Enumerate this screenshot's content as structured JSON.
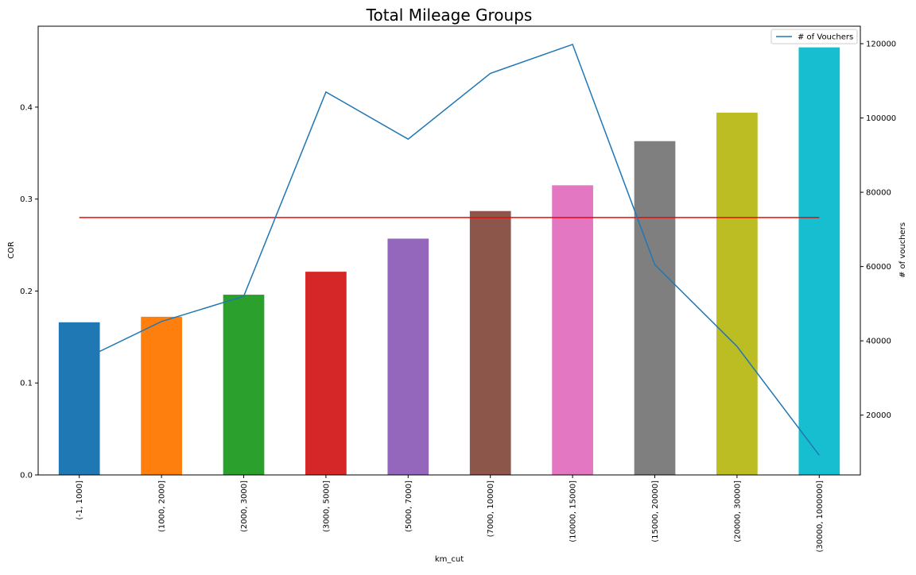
{
  "chart_data": {
    "type": "bar+line",
    "title": "Total Mileage Groups",
    "xlabel": "km_cut",
    "ylabel_left": "COR",
    "ylabel_right": "# of vouchers",
    "categories": [
      "(-1, 1000]",
      "(1000, 2000]",
      "(2000, 3000]",
      "(3000, 5000]",
      "(5000, 7000]",
      "(7000, 10000]",
      "(10000, 15000]",
      "(15000, 20000]",
      "(20000, 30000]",
      "(30000, 1000000]"
    ],
    "bar_series": {
      "name": "COR",
      "values": [
        0.166,
        0.172,
        0.196,
        0.221,
        0.257,
        0.287,
        0.315,
        0.363,
        0.394,
        0.465
      ],
      "colors": [
        "#1f77b4",
        "#ff7f0e",
        "#2ca02c",
        "#d62728",
        "#9467bd",
        "#8c564b",
        "#e377c2",
        "#7f7f7f",
        "#bcbd22",
        "#17becf"
      ]
    },
    "line_series": {
      "name": "# of Vouchers",
      "values": [
        34500,
        45200,
        52000,
        107000,
        94300,
        112000,
        119800,
        60500,
        38500,
        9200
      ],
      "color": "#1f77b4"
    },
    "reference_line": {
      "value": 0.28,
      "color": "#ff0000"
    },
    "ylim_left": [
      0,
      0.488
    ],
    "yticks_left": [
      0.0,
      0.1,
      0.2,
      0.3,
      0.4
    ],
    "ytick_labels_left": [
      "0.0",
      "0.1",
      "0.2",
      "0.3",
      "0.4"
    ],
    "ylim_right": [
      3900,
      124700
    ],
    "yticks_right": [
      20000,
      40000,
      60000,
      80000,
      100000,
      120000
    ],
    "ytick_labels_right": [
      "20000",
      "40000",
      "60000",
      "80000",
      "100000",
      "120000"
    ],
    "legend": {
      "placement": "top-right",
      "entries": [
        "# of Vouchers"
      ]
    },
    "grid": false
  }
}
